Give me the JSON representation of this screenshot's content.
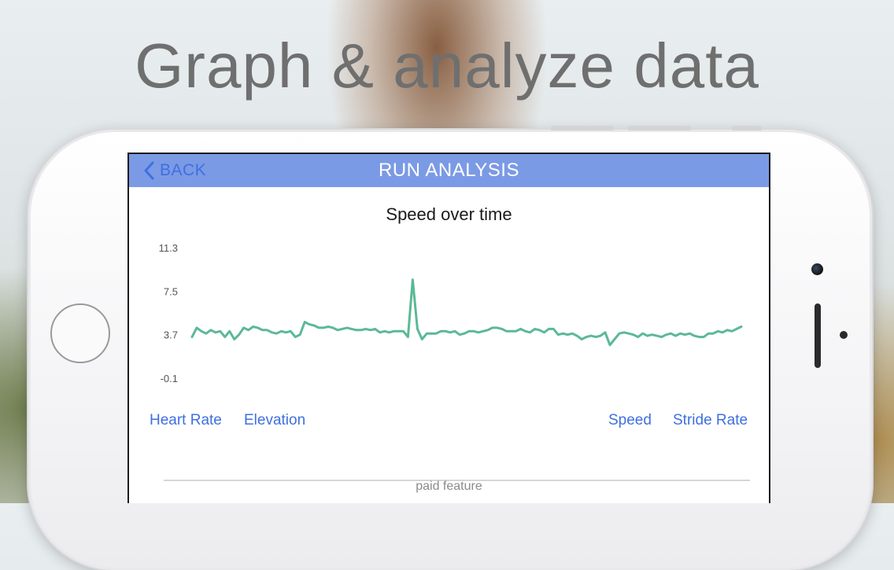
{
  "headline": "Graph & analyze data",
  "app": {
    "nav": {
      "back_label": "BACK",
      "title": "RUN ANALYSIS"
    },
    "chart_title": "Speed over time",
    "metrics": [
      "Heart Rate",
      "Elevation",
      "Speed",
      "Stride Rate"
    ],
    "footer_note": "paid feature"
  },
  "colors": {
    "navbar": "#7b9ae5",
    "accent": "#3f6fe0",
    "line": "#5bb996"
  },
  "icons": {
    "back": "chevron-left-icon"
  },
  "chart_data": {
    "type": "line",
    "title": "Speed over time",
    "xlabel": "",
    "ylabel": "",
    "y_ticks": [
      "11.3",
      "7.5",
      "3.7",
      "-0.1"
    ],
    "ylim": [
      -0.1,
      11.3
    ],
    "grid": false,
    "series": [
      {
        "values": [
          3.5,
          4.3,
          4.0,
          3.8,
          4.1,
          3.9,
          4.0,
          3.5,
          4.0,
          3.3,
          3.7,
          4.3,
          4.1,
          4.4,
          4.3,
          4.1,
          4.1,
          3.9,
          3.8,
          4.0,
          3.9,
          4.0,
          3.5,
          3.7,
          4.8,
          4.6,
          4.5,
          4.3,
          4.3,
          4.4,
          4.3,
          4.1,
          4.2,
          4.3,
          4.2,
          4.1,
          4.1,
          4.2,
          4.1,
          4.2,
          3.9,
          4.0,
          3.9,
          4.0,
          4.0,
          4.0,
          3.5,
          8.5,
          4.2,
          3.3,
          3.8,
          3.8,
          3.8,
          4.0,
          4.0,
          3.9,
          4.0,
          3.7,
          3.8,
          4.0,
          4.0,
          3.9,
          4.0,
          4.1,
          4.3,
          4.3,
          4.2,
          4.0,
          4.0,
          4.0,
          4.2,
          4.0,
          3.9,
          4.2,
          4.1,
          3.9,
          4.2,
          4.2,
          3.7,
          3.8,
          3.7,
          3.8,
          3.6,
          3.3,
          3.5,
          3.6,
          3.5,
          3.6,
          3.9,
          2.8,
          3.3,
          3.8,
          3.9,
          3.8,
          3.7,
          3.5,
          3.8,
          3.6,
          3.7,
          3.6,
          3.5,
          3.7,
          3.8,
          3.6,
          3.8,
          3.7,
          3.8,
          3.6,
          3.5,
          3.5,
          3.8,
          3.8,
          4.0,
          3.9,
          4.1,
          4.0,
          4.2,
          4.4
        ]
      }
    ]
  }
}
